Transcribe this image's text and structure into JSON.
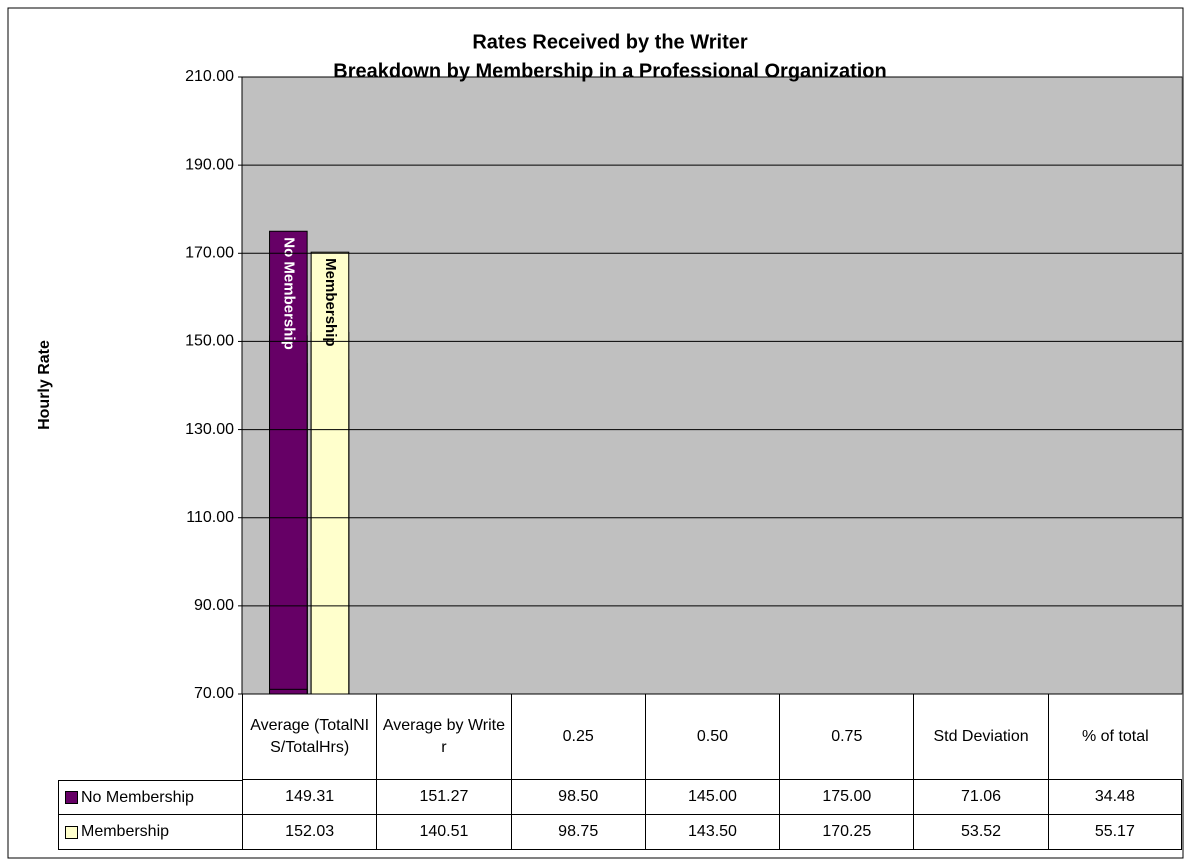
{
  "chart_data": {
    "type": "bar",
    "title": "Rates Received by the Writer",
    "subtitle": "Breakdown by Membership in a Professional Organization",
    "y_label": "Hourly Rate",
    "categories": [
      "Average (TotalNIS/TotalHrs)",
      "Average by Writer",
      "0.25",
      "0.50",
      "0.75",
      "Std Deviation",
      "% of total"
    ],
    "series": [
      {
        "name": "No Membership",
        "color": "#660066",
        "values": [
          149.31,
          151.27,
          98.5,
          145,
          175,
          71.06,
          34.48
        ],
        "value_labels": [
          "149.31",
          "151.27",
          "98.50",
          "145.00",
          "175.00",
          "71.06",
          "34.48"
        ]
      },
      {
        "name": "Membership",
        "color": "#ffffcc",
        "values": [
          152.03,
          140.51,
          98.75,
          143.5,
          170.25,
          53.52,
          55.17
        ],
        "value_labels": [
          "152.03",
          "140.51",
          "98.75",
          "143.50",
          "170.25",
          "53.52",
          "55.17"
        ]
      }
    ],
    "ylim": [
      70,
      210
    ],
    "yticks": [
      {
        "value": 70,
        "label": "70.00"
      },
      {
        "value": 90,
        "label": "90.00"
      },
      {
        "value": 110,
        "label": "110.00"
      },
      {
        "value": 130,
        "label": "130.00"
      },
      {
        "value": 150,
        "label": "150.00"
      },
      {
        "value": 170,
        "label": "170.00"
      },
      {
        "value": 190,
        "label": "190.00"
      },
      {
        "value": 210,
        "label": "210.00"
      }
    ],
    "grid": true,
    "plot_background": "#c0c0c0"
  }
}
